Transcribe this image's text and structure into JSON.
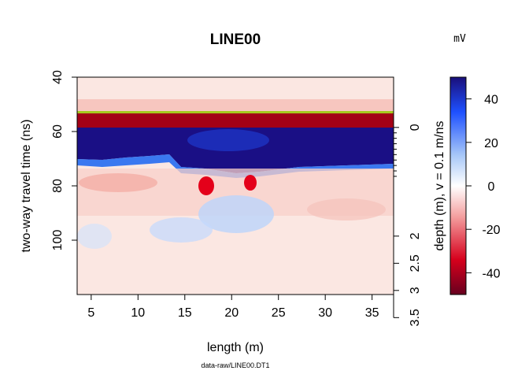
{
  "chart_data": {
    "type": "heatmap",
    "title": "LINE00",
    "xlabel": "length (m)",
    "ylabel": "two-way travel time (ns)",
    "y2label": "depth (m),   v = 0.1 m/ns",
    "caption": "data-raw/LINE00.DT1",
    "colorbar_unit": "mV",
    "xlim": [
      3.5,
      37.3
    ],
    "ylim": [
      120,
      40
    ],
    "zlim": [
      -50,
      50
    ],
    "x_ticks": [
      5,
      10,
      15,
      20,
      25,
      30,
      35
    ],
    "y_ticks": [
      40,
      60,
      80,
      100
    ],
    "depth_ticks": [
      0,
      2,
      2.5,
      3,
      3.5
    ],
    "colorbar_ticks": [
      40,
      20,
      0,
      -20,
      -40
    ],
    "colormap": [
      "#67001f",
      "#d6001c",
      "#f4a0a0",
      "#ffffff",
      "#a8c8f8",
      "#1e50ff",
      "#1a0f7a"
    ],
    "time_zero_ns": 58.5,
    "velocity_m_per_ns": 0.1,
    "grid": false,
    "legend": "colorbar-right"
  }
}
